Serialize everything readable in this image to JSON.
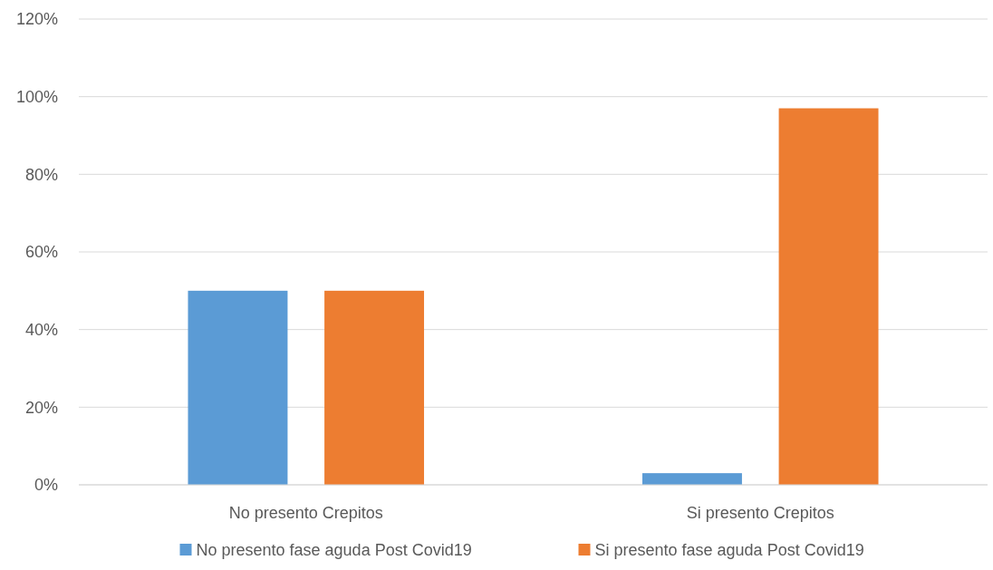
{
  "chart_data": {
    "type": "bar",
    "categories": [
      "No presento Crepitos",
      "Si presento Crepitos"
    ],
    "series": [
      {
        "name": "No presento fase aguda Post Covid19",
        "color": "#5b9bd5",
        "values": [
          50,
          3
        ]
      },
      {
        "name": "Si presento fase aguda Post Covid19",
        "color": "#ed7d31",
        "values": [
          50,
          97
        ]
      }
    ],
    "ylim": [
      0,
      120
    ],
    "yticks": [
      {
        "value": 0,
        "label": "0%"
      },
      {
        "value": 20,
        "label": "20%"
      },
      {
        "value": 40,
        "label": "40%"
      },
      {
        "value": 60,
        "label": "60%"
      },
      {
        "value": 80,
        "label": "80%"
      },
      {
        "value": 100,
        "label": "100%"
      },
      {
        "value": 120,
        "label": "120%"
      }
    ],
    "grid": "y",
    "legend": "bottom"
  }
}
